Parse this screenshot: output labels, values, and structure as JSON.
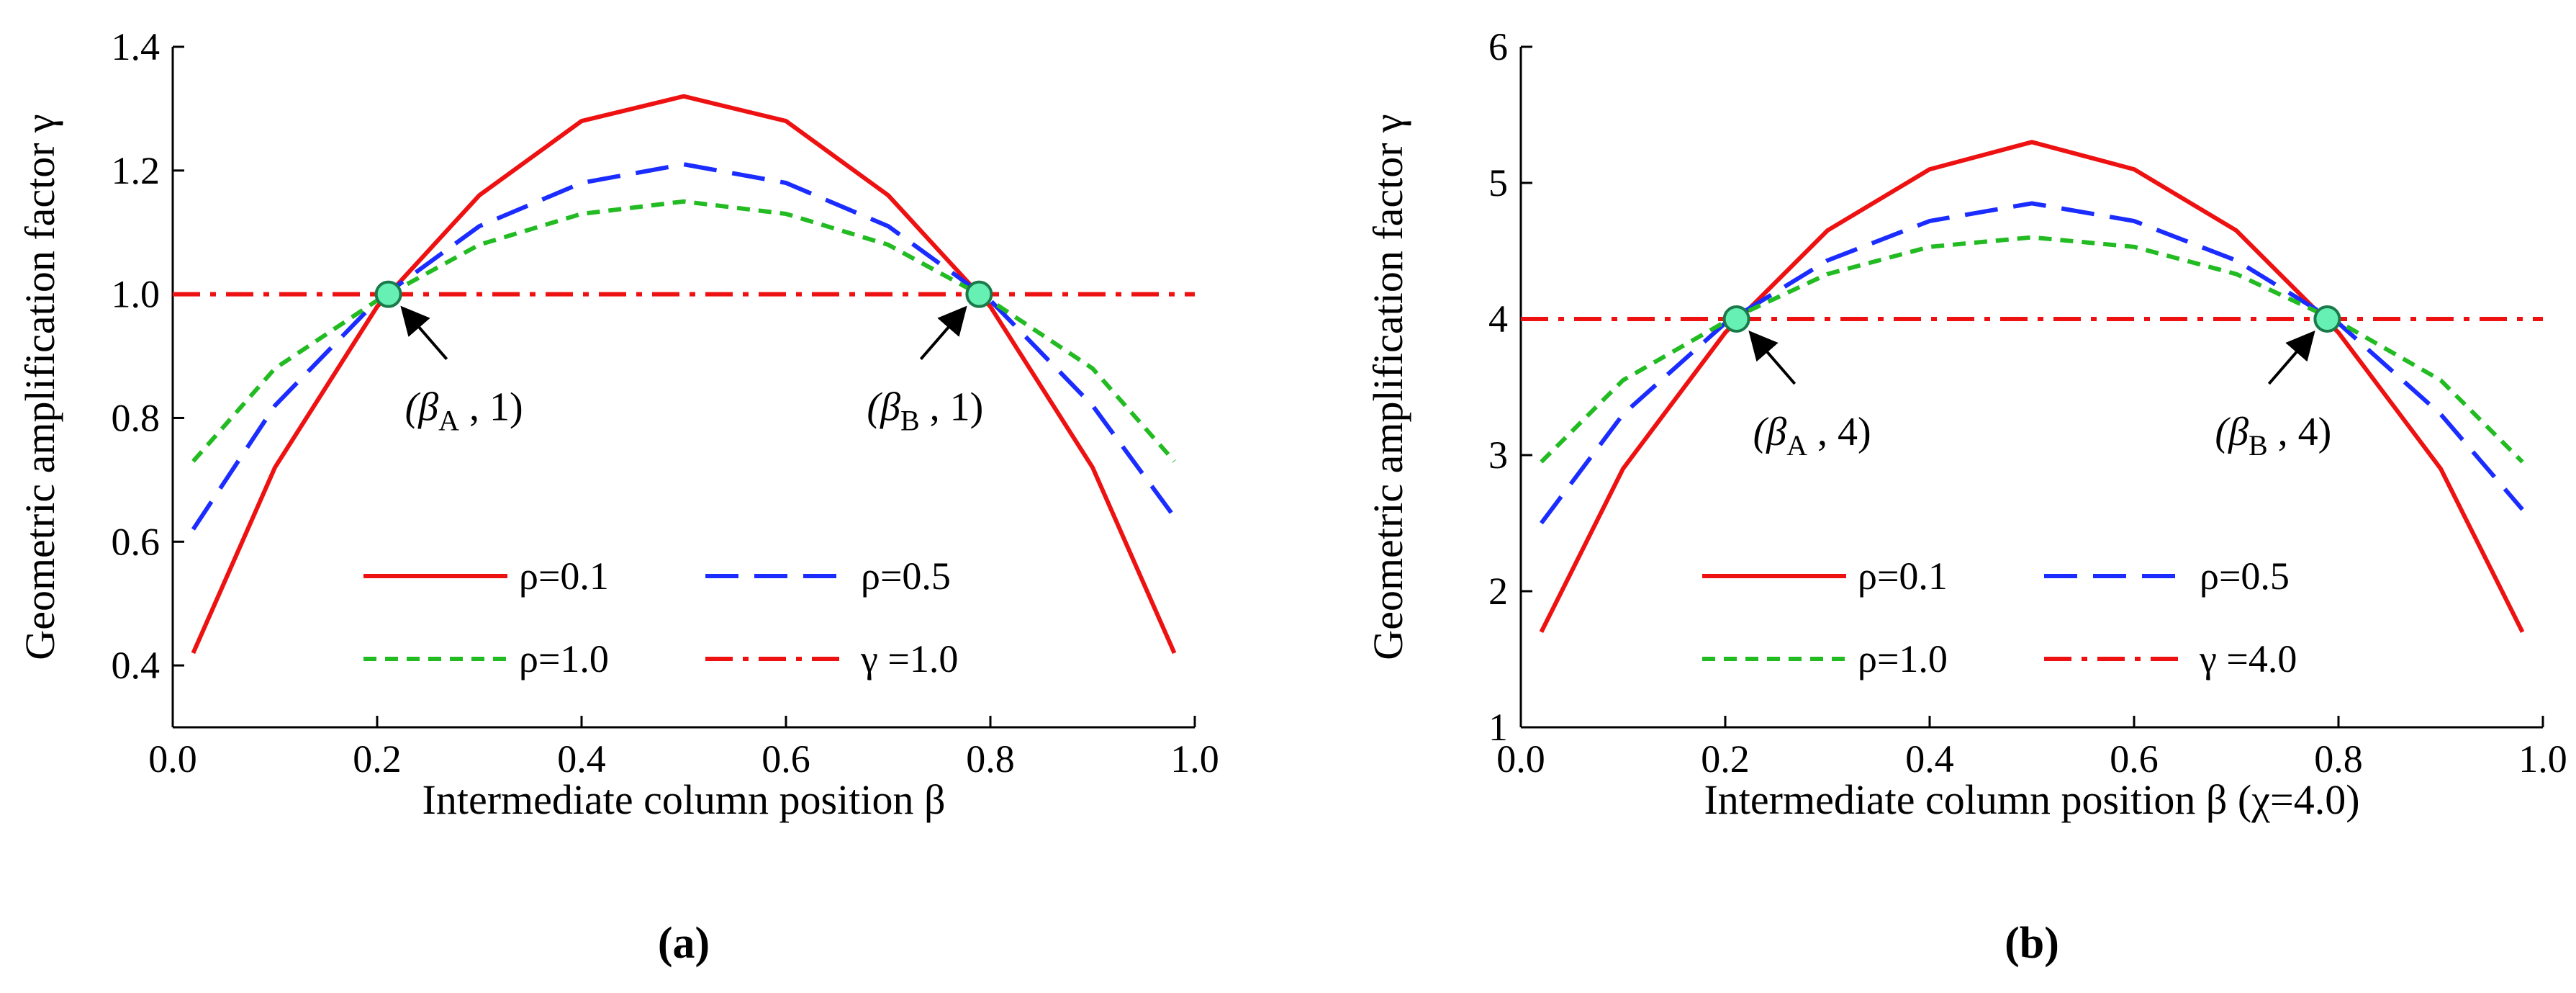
{
  "chart_data": [
    {
      "type": "line",
      "panel_label": "(a)",
      "xlabel": "Intermediate column position  β",
      "ylabel": "Geometric amplification factor γ",
      "xlim": [
        0.0,
        1.0
      ],
      "ylim": [
        0.3,
        1.4
      ],
      "x_ticks": [
        0.0,
        0.2,
        0.4,
        0.6,
        0.8,
        1.0
      ],
      "x_tick_labels": [
        "0.0",
        "0.2",
        "0.4",
        "0.6",
        "0.8",
        "1.0"
      ],
      "y_ticks": [
        0.4,
        0.6,
        0.8,
        1.0,
        1.2,
        1.4
      ],
      "y_tick_labels": [
        "0.4",
        "0.6",
        "0.8",
        "1.0",
        "1.2",
        "1.4"
      ],
      "grid": false,
      "legend_position": "bottom-center",
      "series": [
        {
          "name": "ρ=0.1",
          "style": "solid",
          "color": "#ee1111",
          "x": [
            0.02,
            0.1,
            0.2,
            0.3,
            0.4,
            0.5,
            0.6,
            0.7,
            0.8,
            0.9,
            0.98
          ],
          "y": [
            0.42,
            0.72,
            0.98,
            1.16,
            1.28,
            1.32,
            1.28,
            1.16,
            0.98,
            0.72,
            0.42
          ]
        },
        {
          "name": "ρ=0.5",
          "style": "dashed",
          "color": "#1a2cff",
          "x": [
            0.02,
            0.1,
            0.2,
            0.3,
            0.4,
            0.5,
            0.6,
            0.7,
            0.8,
            0.9,
            0.98
          ],
          "y": [
            0.62,
            0.82,
            0.99,
            1.11,
            1.18,
            1.21,
            1.18,
            1.11,
            0.99,
            0.82,
            0.64
          ]
        },
        {
          "name": "ρ=1.0",
          "style": "short-dashed",
          "color": "#22bb22",
          "x": [
            0.02,
            0.1,
            0.2,
            0.3,
            0.4,
            0.5,
            0.6,
            0.7,
            0.8,
            0.9,
            0.98
          ],
          "y": [
            0.73,
            0.88,
            0.99,
            1.08,
            1.13,
            1.15,
            1.13,
            1.08,
            0.99,
            0.88,
            0.73
          ]
        },
        {
          "name": "γ =1.0",
          "style": "dash-dot",
          "color": "#ee1111",
          "x": [
            0.0,
            1.0
          ],
          "y": [
            1.0,
            1.0
          ]
        }
      ],
      "points": [
        {
          "x": 0.211,
          "y": 1.0,
          "label": "(βA , 1)",
          "label_main": "(β",
          "label_sub": "A",
          "label_tail": " , 1)"
        },
        {
          "x": 0.789,
          "y": 1.0,
          "label": "(βB , 1)",
          "label_main": "(β",
          "label_sub": "B",
          "label_tail": " , 1)"
        }
      ]
    },
    {
      "type": "line",
      "panel_label": "(b)",
      "xlabel": "Intermediate column position  β (χ=4.0)",
      "ylabel": "Geometric amplification factor γ",
      "xlim": [
        0.0,
        1.0
      ],
      "ylim": [
        1,
        6
      ],
      "x_ticks": [
        0.0,
        0.2,
        0.4,
        0.6,
        0.8,
        1.0
      ],
      "x_tick_labels": [
        "0.0",
        "0.2",
        "0.4",
        "0.6",
        "0.8",
        "1.0"
      ],
      "y_ticks": [
        1,
        2,
        3,
        4,
        5,
        6
      ],
      "y_tick_labels": [
        "1",
        "2",
        "3",
        "4",
        "5",
        "6"
      ],
      "grid": false,
      "legend_position": "bottom-center",
      "series": [
        {
          "name": "ρ=0.1",
          "style": "solid",
          "color": "#ee1111",
          "x": [
            0.02,
            0.1,
            0.2,
            0.3,
            0.4,
            0.5,
            0.6,
            0.7,
            0.8,
            0.9,
            0.98
          ],
          "y": [
            1.7,
            2.9,
            3.9,
            4.65,
            5.1,
            5.3,
            5.1,
            4.65,
            3.9,
            2.9,
            1.7
          ]
        },
        {
          "name": "ρ=0.5",
          "style": "dashed",
          "color": "#1a2cff",
          "x": [
            0.02,
            0.1,
            0.2,
            0.3,
            0.4,
            0.5,
            0.6,
            0.7,
            0.8,
            0.9,
            0.98
          ],
          "y": [
            2.5,
            3.3,
            3.97,
            4.43,
            4.72,
            4.85,
            4.72,
            4.43,
            3.97,
            3.3,
            2.6
          ]
        },
        {
          "name": "ρ=1.0",
          "style": "short-dashed",
          "color": "#22bb22",
          "x": [
            0.02,
            0.1,
            0.2,
            0.3,
            0.4,
            0.5,
            0.6,
            0.7,
            0.8,
            0.9,
            0.98
          ],
          "y": [
            2.95,
            3.55,
            3.98,
            4.33,
            4.53,
            4.6,
            4.53,
            4.33,
            3.98,
            3.55,
            2.95
          ]
        },
        {
          "name": "γ =4.0",
          "style": "dash-dot",
          "color": "#ee1111",
          "x": [
            0.0,
            1.0
          ],
          "y": [
            4.0,
            4.0
          ]
        }
      ],
      "points": [
        {
          "x": 0.211,
          "y": 4.0,
          "label": "(βA , 4)",
          "label_main": "(β",
          "label_sub": "A",
          "label_tail": " , 4)"
        },
        {
          "x": 0.789,
          "y": 4.0,
          "label": "(βB , 4)",
          "label_main": "(β",
          "label_sub": "B",
          "label_tail": " , 4)"
        }
      ]
    }
  ]
}
